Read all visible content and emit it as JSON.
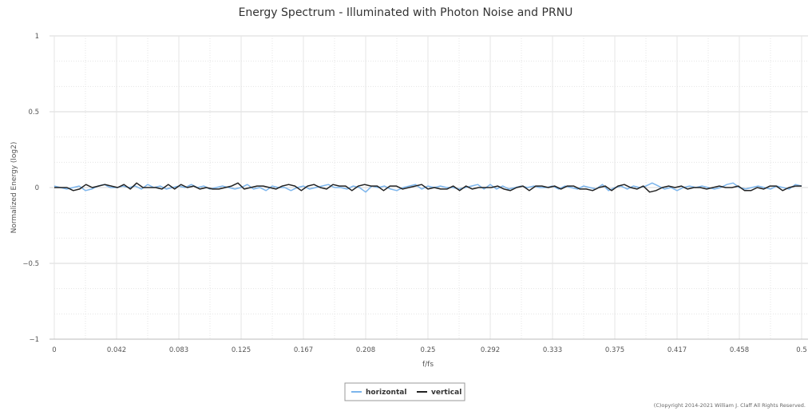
{
  "chart_data": {
    "type": "line",
    "title": "Energy Spectrum - Illuminated with Photon Noise and PRNU",
    "xlabel": "f/fs",
    "ylabel": "Normalized Energy (log2)",
    "xlim": [
      0,
      0.5
    ],
    "ylim": [
      -1,
      1
    ],
    "x_tick_labels": [
      "0",
      "0.042",
      "0.083",
      "0.125",
      "0.167",
      "0.208",
      "0.25",
      "0.292",
      "0.333",
      "0.375",
      "0.417",
      "0.458",
      "0.5"
    ],
    "y_tick_labels": [
      "1",
      "0.5",
      "0",
      "-0.5",
      "-1"
    ],
    "y_ticks": [
      1,
      0.5,
      0,
      -0.5,
      -1
    ],
    "grid": true,
    "legend_position": "bottom-center",
    "series": [
      {
        "name": "horizontal",
        "color": "#7cb5ec",
        "values": [
          0.01,
          0,
          -0.01,
          0,
          0.01,
          -0.02,
          -0.01,
          0.01,
          0.02,
          0,
          0,
          0.01,
          0,
          0.01,
          -0.01,
          0.02,
          0,
          0.01,
          -0.01,
          0,
          0.01,
          0,
          0.02,
          0,
          0.01,
          -0.01,
          0,
          0.01,
          0,
          -0.01,
          0,
          0.02,
          -0.01,
          0,
          -0.02,
          0.01,
          0,
          0,
          -0.02,
          0,
          0.01,
          -0.01,
          0,
          0.01,
          0.02,
          0,
          0,
          -0.01,
          0.01,
          0,
          -0.03,
          0.01,
          0,
          0.01,
          -0.01,
          -0.02,
          0,
          0.01,
          0.02,
          -0.01,
          0.01,
          0,
          0.01,
          0,
          0,
          -0.01,
          0,
          0.01,
          0.02,
          -0.01,
          0.02,
          -0.01,
          0.01,
          -0.01,
          0,
          0.01,
          0,
          0.01,
          0,
          0,
          0.01,
          -0.01,
          0.01,
          0,
          -0.01,
          0.01,
          0,
          -0.01,
          0.02,
          -0.02,
          0,
          0.01,
          -0.01,
          0.01,
          0,
          0.01,
          0.03,
          0.01,
          -0.01,
          0,
          -0.02,
          0,
          0.01,
          0,
          0.01,
          0,
          -0.01,
          0,
          0.02,
          0.03,
          0,
          -0.01,
          0,
          0.01,
          0,
          -0.01,
          0.01,
          0,
          -0.01,
          0.02,
          0.01
        ]
      },
      {
        "name": "vertical",
        "color": "#222222",
        "values": [
          0,
          0,
          0,
          -0.02,
          -0.01,
          0.02,
          0,
          0.01,
          0.02,
          0.01,
          0,
          0.02,
          -0.01,
          0.03,
          0,
          0,
          0,
          -0.01,
          0.02,
          -0.01,
          0.02,
          0,
          0.01,
          -0.01,
          0,
          -0.01,
          -0.01,
          0,
          0.01,
          0.03,
          -0.01,
          0,
          0.01,
          0.01,
          0,
          -0.01,
          0.01,
          0.02,
          0.01,
          -0.02,
          0.01,
          0.02,
          0,
          -0.01,
          0.02,
          0.01,
          0.01,
          -0.02,
          0.01,
          0.02,
          0.01,
          0.01,
          -0.02,
          0.01,
          0.01,
          -0.01,
          0,
          0.01,
          0.02,
          -0.01,
          0,
          -0.01,
          -0.01,
          0.01,
          -0.02,
          0.01,
          -0.01,
          0,
          0,
          0,
          0.01,
          -0.01,
          -0.02,
          0,
          0.01,
          -0.02,
          0.01,
          0.01,
          0,
          0.01,
          -0.01,
          0.01,
          0.01,
          -0.01,
          -0.01,
          -0.02,
          0,
          0.01,
          -0.02,
          0.01,
          0.02,
          0,
          -0.01,
          0.01,
          -0.03,
          -0.02,
          0,
          0.01,
          0,
          0.01,
          -0.01,
          0,
          0,
          -0.01,
          0,
          0.01,
          0,
          0,
          0.01,
          -0.02,
          -0.02,
          0,
          -0.01,
          0.01,
          0.01,
          -0.02,
          0,
          0.01,
          0.01
        ]
      }
    ]
  },
  "copyright": "(C)opyright 2014-2021 William J. Claff All Rights Reserved."
}
